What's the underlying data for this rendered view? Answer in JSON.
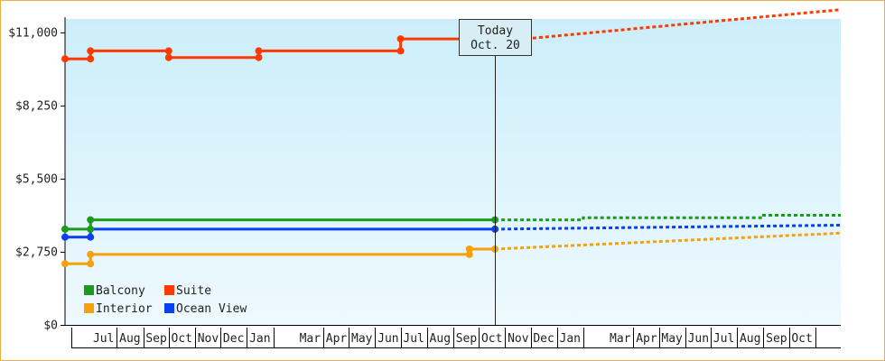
{
  "chart_data": {
    "type": "line",
    "title": "",
    "ylabel": "",
    "xlabel": "",
    "ylim": [
      0,
      11500
    ],
    "y_ticks": [
      0,
      2750,
      5500,
      8250,
      11000
    ],
    "y_tick_labels": [
      "$0",
      "$2,750",
      "$5,500",
      "$8,250",
      "$11,000"
    ],
    "x_range": [
      "2013-06-01",
      "2015-12-01"
    ],
    "x_month_labels": [
      {
        "date": "2013-07-01",
        "label": "Jul"
      },
      {
        "date": "2013-08-01",
        "label": "Aug"
      },
      {
        "date": "2013-09-01",
        "label": "Sep"
      },
      {
        "date": "2013-10-01",
        "label": "Oct"
      },
      {
        "date": "2013-11-01",
        "label": "Nov"
      },
      {
        "date": "2013-12-01",
        "label": "Dec"
      },
      {
        "date": "2014-01-01",
        "label": "Jan"
      },
      {
        "date": "2014-03-01",
        "label": "Mar"
      },
      {
        "date": "2014-04-01",
        "label": "Apr"
      },
      {
        "date": "2014-05-01",
        "label": "May"
      },
      {
        "date": "2014-06-01",
        "label": "Jun"
      },
      {
        "date": "2014-07-01",
        "label": "Jul"
      },
      {
        "date": "2014-08-01",
        "label": "Aug"
      },
      {
        "date": "2014-09-01",
        "label": "Sep"
      },
      {
        "date": "2014-10-01",
        "label": "Oct"
      },
      {
        "date": "2014-11-01",
        "label": "Nov"
      },
      {
        "date": "2014-12-01",
        "label": "Dec"
      },
      {
        "date": "2015-01-01",
        "label": "Jan"
      },
      {
        "date": "2015-03-01",
        "label": "Mar"
      },
      {
        "date": "2015-04-01",
        "label": "Apr"
      },
      {
        "date": "2015-05-01",
        "label": "May"
      },
      {
        "date": "2015-06-01",
        "label": "Jun"
      },
      {
        "date": "2015-07-01",
        "label": "Jul"
      },
      {
        "date": "2015-08-01",
        "label": "Aug"
      },
      {
        "date": "2015-09-01",
        "label": "Sep"
      },
      {
        "date": "2015-10-01",
        "label": "Oct"
      }
    ],
    "today": {
      "date": "2014-10-20",
      "line1": "Today",
      "line2": "Oct. 20"
    },
    "grid": false,
    "legend_placement": "bottom-left",
    "background_colors": [
      "#cceefa",
      "#eef9fd"
    ],
    "series": [
      {
        "name": "Balcony",
        "color": "#1b9a1b",
        "points": [
          [
            "2013-06-01",
            3600
          ],
          [
            "2013-07-01",
            3600
          ],
          [
            "2013-07-01",
            3950
          ],
          [
            "2014-10-20",
            3950
          ]
        ],
        "projection": [
          [
            "2014-10-20",
            3950
          ],
          [
            "2015-02-01",
            3950
          ],
          [
            "2015-02-01",
            4030
          ],
          [
            "2015-09-01",
            4030
          ],
          [
            "2015-09-01",
            4120
          ],
          [
            "2015-12-01",
            4120
          ]
        ]
      },
      {
        "name": "Suite",
        "color": "#ff3a00",
        "points": [
          [
            "2013-06-01",
            10000
          ],
          [
            "2013-07-01",
            10000
          ],
          [
            "2013-07-01",
            10300
          ],
          [
            "2013-10-01",
            10300
          ],
          [
            "2013-10-01",
            10050
          ],
          [
            "2014-01-15",
            10050
          ],
          [
            "2014-01-15",
            10300
          ],
          [
            "2014-07-01",
            10300
          ],
          [
            "2014-07-01",
            10750
          ],
          [
            "2014-10-01",
            10750
          ],
          [
            "2014-10-01",
            10650
          ],
          [
            "2014-10-20",
            10650
          ]
        ],
        "projection": [
          [
            "2014-10-20",
            10650
          ],
          [
            "2015-12-01",
            11850
          ]
        ]
      },
      {
        "name": "Interior",
        "color": "#f6a10c",
        "points": [
          [
            "2013-06-01",
            2300
          ],
          [
            "2013-07-01",
            2300
          ],
          [
            "2013-07-01",
            2650
          ],
          [
            "2014-09-20",
            2650
          ],
          [
            "2014-09-20",
            2850
          ],
          [
            "2014-10-20",
            2850
          ]
        ],
        "projection": [
          [
            "2014-10-20",
            2850
          ],
          [
            "2015-12-01",
            3450
          ]
        ]
      },
      {
        "name": "Ocean View",
        "color": "#0a3ff2",
        "points": [
          [
            "2013-06-01",
            3300
          ],
          [
            "2013-07-01",
            3300
          ],
          [
            "2013-07-01",
            3600
          ],
          [
            "2014-10-20",
            3600
          ]
        ],
        "projection": [
          [
            "2014-10-20",
            3600
          ],
          [
            "2015-12-01",
            3750
          ]
        ]
      }
    ],
    "markers": {
      "Balcony": [
        [
          "2013-06-01",
          3600
        ],
        [
          "2013-07-01",
          3600
        ],
        [
          "2013-07-01",
          3950
        ],
        [
          "2014-10-20",
          3950
        ]
      ],
      "Suite": [
        [
          "2013-06-01",
          10000
        ],
        [
          "2013-07-01",
          10000
        ],
        [
          "2013-07-01",
          10300
        ],
        [
          "2013-10-01",
          10300
        ],
        [
          "2013-10-01",
          10050
        ],
        [
          "2014-01-15",
          10050
        ],
        [
          "2014-01-15",
          10300
        ],
        [
          "2014-07-01",
          10300
        ],
        [
          "2014-07-01",
          10750
        ],
        [
          "2014-10-01",
          10750
        ],
        [
          "2014-10-01",
          10650
        ],
        [
          "2014-10-20",
          10650
        ]
      ],
      "Interior": [
        [
          "2013-06-01",
          2300
        ],
        [
          "2013-07-01",
          2300
        ],
        [
          "2013-07-01",
          2650
        ],
        [
          "2014-09-20",
          2650
        ],
        [
          "2014-09-20",
          2850
        ],
        [
          "2014-10-20",
          2850
        ]
      ],
      "Ocean View": [
        [
          "2013-06-01",
          3300
        ],
        [
          "2013-07-01",
          3300
        ],
        [
          "2014-10-20",
          3600
        ]
      ]
    }
  }
}
